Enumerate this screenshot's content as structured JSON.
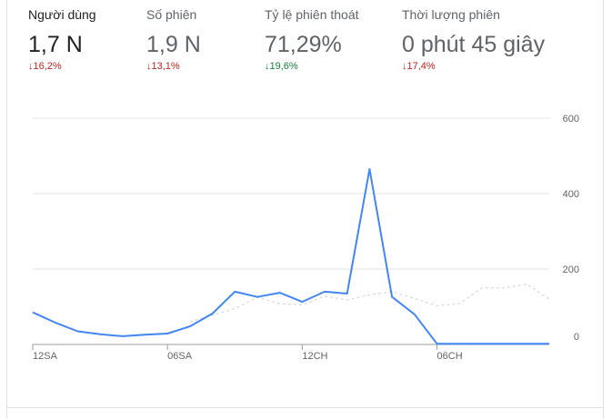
{
  "metrics": [
    {
      "label": "Người dùng",
      "value": "1,7 N",
      "delta": "16,2%",
      "direction": "down",
      "active": true
    },
    {
      "label": "Số phiên",
      "value": "1,9 N",
      "delta": "13,1%",
      "direction": "down",
      "active": false
    },
    {
      "label": "Tỷ lệ phiên thoát",
      "value": "71,29%",
      "delta": "19,6%",
      "direction": "up",
      "active": false
    },
    {
      "label": "Thời lượng phiên",
      "value": "0 phút 45 giây",
      "delta": "17,4%",
      "direction": "down",
      "active": false
    }
  ],
  "arrows": {
    "down": "↓",
    "up": "↓"
  },
  "colors": {
    "primary_series": "#4285f4",
    "compare_series": "#d0d0d0",
    "down": "#c5221f",
    "up": "#188038"
  },
  "chart_data": {
    "type": "line",
    "x": [
      0,
      1,
      2,
      3,
      4,
      5,
      6,
      7,
      8,
      9,
      10,
      11,
      12,
      13,
      14,
      15,
      16,
      17,
      18,
      19,
      20,
      21,
      22,
      23
    ],
    "x_tick_labels": [
      {
        "at": 0,
        "label": "12SA"
      },
      {
        "at": 6,
        "label": "06SA"
      },
      {
        "at": 12,
        "label": "12CH"
      },
      {
        "at": 18,
        "label": "06CH"
      }
    ],
    "y_ticks": [
      0,
      200,
      400,
      600
    ],
    "ylim": [
      0,
      600
    ],
    "y_axis_position": "right",
    "grid": true,
    "series": [
      {
        "values": [
          85,
          58,
          35,
          27,
          22,
          26,
          29,
          48,
          82,
          140,
          126,
          137,
          113,
          140,
          135,
          465,
          126,
          80,
          2,
          2,
          2,
          2,
          2,
          2
        ]
      },
      {
        "values": [
          null,
          null,
          null,
          null,
          null,
          null,
          null,
          60,
          78,
          95,
          125,
          108,
          105,
          128,
          118,
          132,
          140,
          122,
          103,
          108,
          150,
          150,
          160,
          120
        ]
      }
    ]
  }
}
